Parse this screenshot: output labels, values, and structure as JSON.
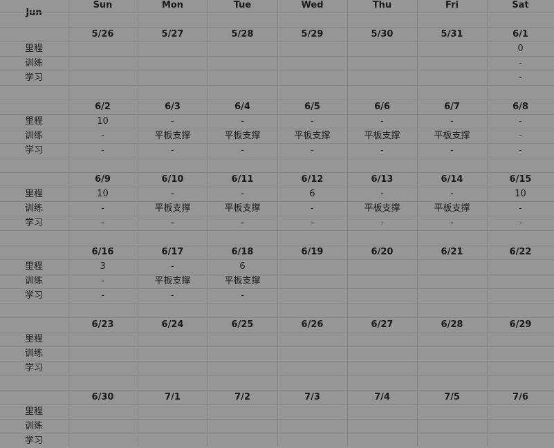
{
  "sheet": {
    "month_label": "Jun",
    "weekdays": [
      "Sun",
      "Mon",
      "Tue",
      "Wed",
      "Thu",
      "Fri",
      "Sat"
    ],
    "row_labels": [
      "里程",
      "训练",
      "学习"
    ],
    "weeks": [
      {
        "dates": [
          "5/26",
          "5/27",
          "5/28",
          "5/29",
          "5/30",
          "5/31",
          "6/1"
        ],
        "rows": [
          [
            "",
            "",
            "",
            "",
            "",
            "",
            "0"
          ],
          [
            "",
            "",
            "",
            "",
            "",
            "",
            "-"
          ],
          [
            "",
            "",
            "",
            "",
            "",
            "",
            "-"
          ]
        ]
      },
      {
        "dates": [
          "6/2",
          "6/3",
          "6/4",
          "6/5",
          "6/6",
          "6/7",
          "6/8"
        ],
        "rows": [
          [
            "10",
            "-",
            "-",
            "-",
            "-",
            "-",
            "-"
          ],
          [
            "-",
            "平板支撑",
            "平板支撑",
            "平板支撑",
            "平板支撑",
            "平板支撑",
            "-"
          ],
          [
            "-",
            "-",
            "-",
            "-",
            "-",
            "-",
            "-"
          ]
        ]
      },
      {
        "dates": [
          "6/9",
          "6/10",
          "6/11",
          "6/12",
          "6/13",
          "6/14",
          "6/15"
        ],
        "rows": [
          [
            "10",
            "-",
            "-",
            "6",
            "-",
            "-",
            "10"
          ],
          [
            "-",
            "平板支撑",
            "平板支撑",
            "-",
            "平板支撑",
            "平板支撑",
            "-"
          ],
          [
            "-",
            "-",
            "-",
            "-",
            "-",
            "-",
            "-"
          ]
        ]
      },
      {
        "dates": [
          "6/16",
          "6/17",
          "6/18",
          "6/19",
          "6/20",
          "6/21",
          "6/22"
        ],
        "rows": [
          [
            "3",
            "-",
            "6",
            "",
            "",
            "",
            ""
          ],
          [
            "-",
            "平板支撑",
            "平板支撑",
            "",
            "",
            "",
            ""
          ],
          [
            "-",
            "-",
            "-",
            "",
            "",
            "",
            ""
          ]
        ]
      },
      {
        "dates": [
          "6/23",
          "6/24",
          "6/25",
          "6/26",
          "6/27",
          "6/28",
          "6/29"
        ],
        "rows": [
          [
            "",
            "",
            "",
            "",
            "",
            "",
            ""
          ],
          [
            "",
            "",
            "",
            "",
            "",
            "",
            ""
          ],
          [
            "",
            "",
            "",
            "",
            "",
            "",
            ""
          ]
        ]
      },
      {
        "dates": [
          "6/30",
          "7/1",
          "7/2",
          "7/3",
          "7/4",
          "7/5",
          "7/6"
        ],
        "rows": [
          [
            "",
            "",
            "",
            "",
            "",
            "",
            ""
          ],
          [
            "",
            "",
            "",
            "",
            "",
            "",
            ""
          ],
          [
            "",
            "",
            "",
            "",
            "",
            "",
            ""
          ]
        ]
      }
    ]
  }
}
